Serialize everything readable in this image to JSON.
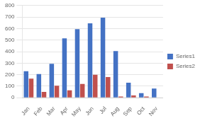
{
  "chart_data": {
    "type": "bar",
    "categories": [
      "Jan",
      "Feb",
      "Mar",
      "Apr",
      "May",
      "Jun",
      "Jul",
      "Aug",
      "Sep",
      "Oct",
      "Nov"
    ],
    "series": [
      {
        "name": "Series1",
        "color": "#4472C4",
        "values": [
          230,
          205,
          295,
          515,
          595,
          645,
          695,
          405,
          130,
          40,
          80
        ]
      },
      {
        "name": "Series2",
        "color": "#C0504D",
        "values": [
          165,
          50,
          105,
          65,
          120,
          200,
          180,
          10,
          20,
          10,
          0
        ]
      }
    ],
    "ylim": [
      0,
      800
    ],
    "yticks": [
      0,
      100,
      200,
      300,
      400,
      500,
      600,
      700,
      800
    ],
    "grid": true,
    "legend": "right"
  }
}
